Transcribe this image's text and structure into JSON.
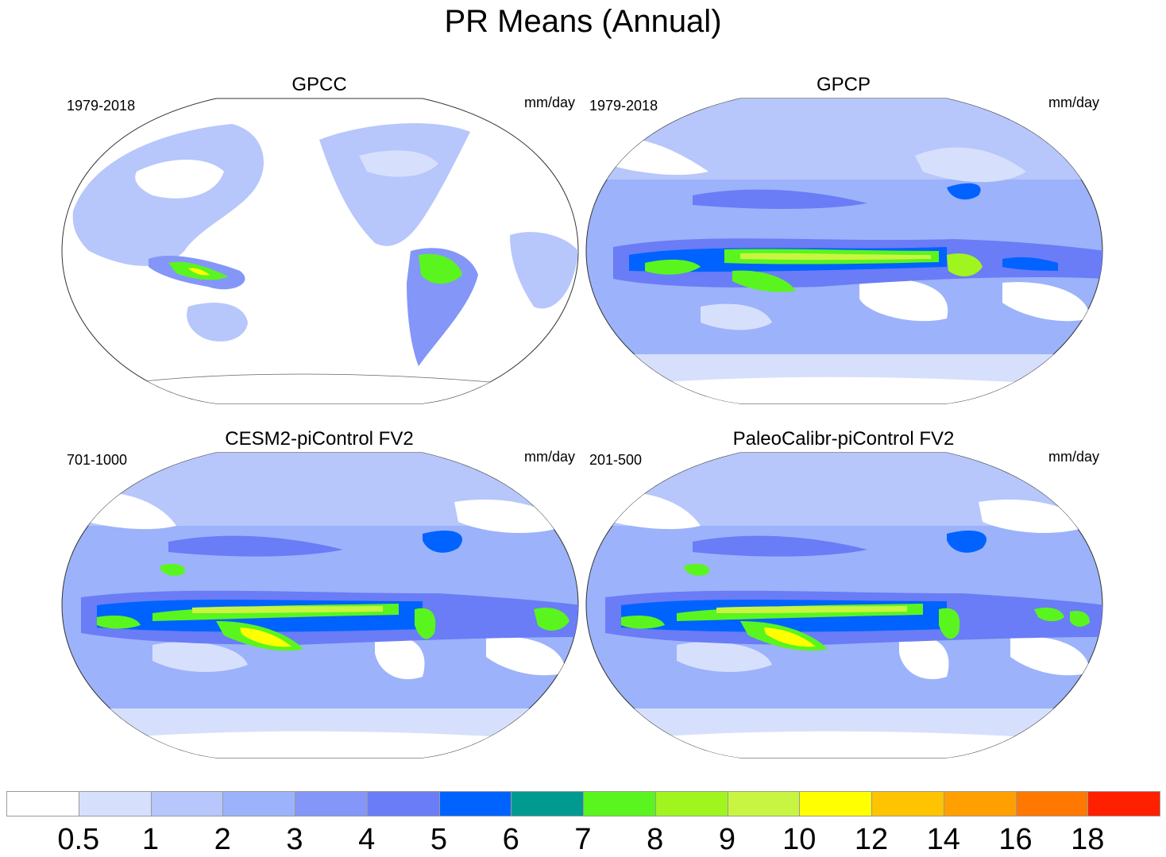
{
  "figure": {
    "title": "PR Means (Annual)"
  },
  "panels": [
    {
      "title": "GPCC",
      "period": "1979-2018",
      "units": "mm/day"
    },
    {
      "title": "GPCP",
      "period": "1979-2018",
      "units": "mm/day"
    },
    {
      "title": "CESM2-piControl FV2",
      "period": "701-1000",
      "units": "mm/day"
    },
    {
      "title": "PaleoCalibr-piControl FV2",
      "period": "201-500",
      "units": "mm/day"
    }
  ],
  "colorbar": {
    "labels": [
      "0.5",
      "1",
      "2",
      "3",
      "4",
      "5",
      "6",
      "7",
      "8",
      "9",
      "10",
      "12",
      "14",
      "16",
      "18"
    ],
    "colors": [
      "#ffffff",
      "#d6e0fc",
      "#b7c6fb",
      "#9cb2fa",
      "#8496f8",
      "#6a7cf6",
      "#0063ff",
      "#009a90",
      "#5af51e",
      "#a0f51e",
      "#c8f541",
      "#ffff00",
      "#ffc400",
      "#ffa000",
      "#ff7800",
      "#ff2000"
    ]
  },
  "legend": {
    "level_colors": {
      "l1": "#d6e0fc",
      "l2": "#b7c6fb",
      "l3": "#9cb2fa",
      "l4": "#8496f8",
      "l5": "#6a7cf6",
      "l6": "#0063ff",
      "l7": "#009a90",
      "l8": "#5af51e",
      "l9": "#a0f51e",
      "l10": "#c8f541",
      "l11": "#ffff00"
    }
  }
}
